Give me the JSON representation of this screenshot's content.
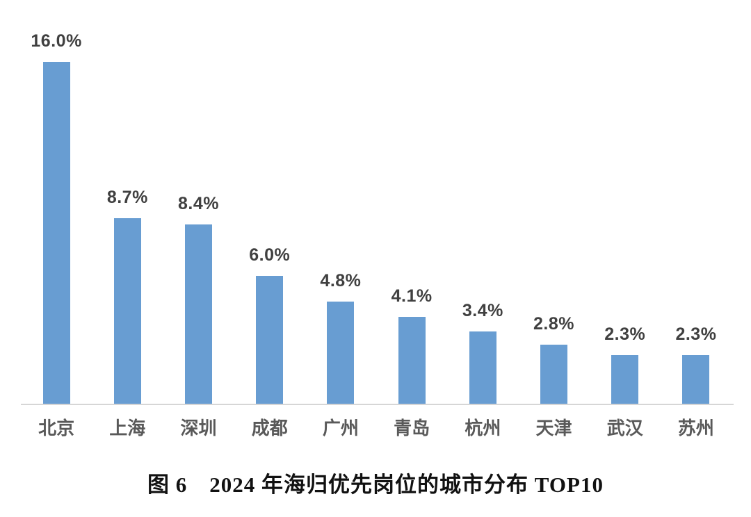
{
  "chart_data": {
    "type": "bar",
    "categories": [
      "北京",
      "上海",
      "深圳",
      "成都",
      "广州",
      "青岛",
      "杭州",
      "天津",
      "武汉",
      "苏州"
    ],
    "values": [
      16.0,
      8.7,
      8.4,
      6.0,
      4.8,
      4.1,
      3.4,
      2.8,
      2.3,
      2.3
    ],
    "value_labels": [
      "16.0%",
      "8.7%",
      "8.4%",
      "6.0%",
      "4.8%",
      "4.1%",
      "3.4%",
      "2.8%",
      "2.3%",
      "2.3%"
    ],
    "title": "图 6　2024 年海归优先岗位的城市分布 TOP10",
    "xlabel": "",
    "ylabel": "",
    "ylim": [
      0,
      18
    ],
    "grid": false,
    "legend_position": "none",
    "bar_color": "#689dd2",
    "value_label_color": "#404040",
    "axis_label_color": "#595959",
    "axis_line_color": "#d6d6d6",
    "background_color": "#ffffff"
  }
}
